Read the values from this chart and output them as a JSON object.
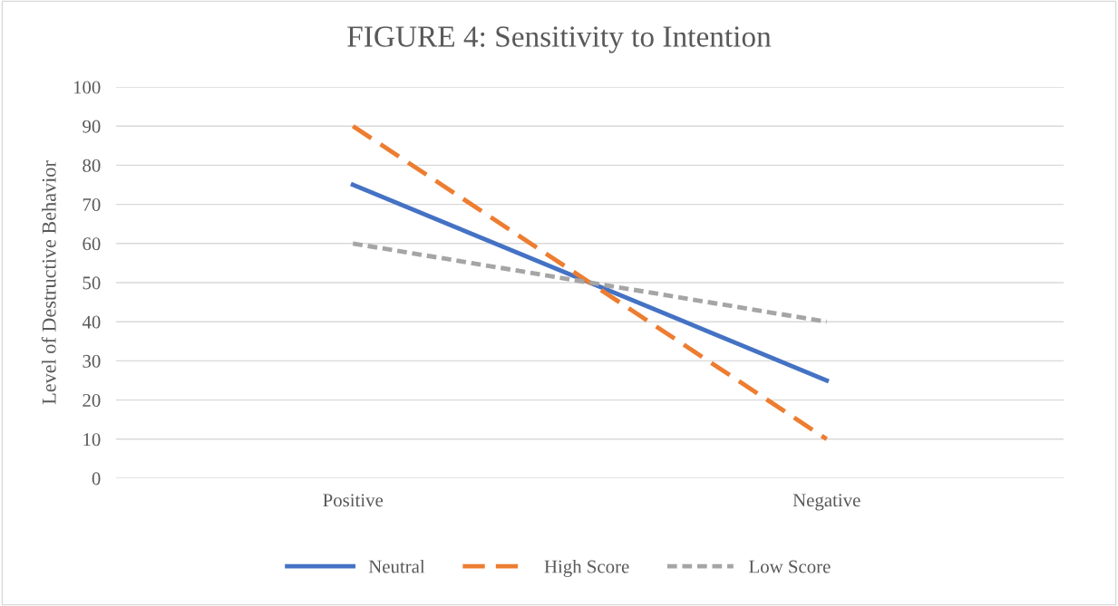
{
  "chart_data": {
    "type": "line",
    "title": "FIGURE 4: Sensitivity to Intention",
    "ylabel": "Level of Destructive Behavior",
    "categories": [
      "Positive",
      "Negative"
    ],
    "series": [
      {
        "name": "Neutral",
        "color": "#4472c4",
        "values": [
          75,
          25
        ],
        "line_style": "solid"
      },
      {
        "name": "High Score",
        "color": "#ed7d31",
        "values": [
          90,
          10
        ],
        "line_style": "dashed"
      },
      {
        "name": "Low Score",
        "color": "#a5a5a5",
        "values": [
          60,
          40
        ],
        "line_style": "dotted"
      }
    ],
    "ylim": [
      0,
      100
    ],
    "yticks": [
      0,
      10,
      20,
      30,
      40,
      50,
      60,
      70,
      80,
      90,
      100
    ],
    "grid": "y",
    "legend": "bottom",
    "marker": "none"
  }
}
